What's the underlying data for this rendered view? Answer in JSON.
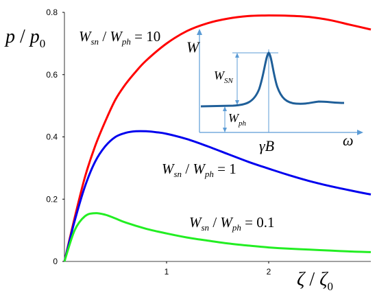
{
  "chart_data": {
    "type": "line",
    "title": "",
    "xlim": [
      0,
      3
    ],
    "ylim": [
      0,
      0.8
    ],
    "xticks": [
      "1",
      "2"
    ],
    "yticks": [
      "0",
      "0.2",
      "0.4",
      "0.6",
      "0.8"
    ],
    "xlabel": {
      "main": "ζ",
      "sep": " / ",
      "main2": "ζ",
      "sub2": "0"
    },
    "ylabel": {
      "main": "p",
      "sep": " / ",
      "main2": "p",
      "sub2": "0"
    },
    "series": [
      {
        "color": "#ff0000",
        "x": [
          0,
          0.1,
          0.2,
          0.3,
          0.4,
          0.5,
          0.6,
          0.7,
          0.8,
          1.0,
          1.2,
          1.4,
          1.6,
          1.8,
          2.0,
          2.2,
          2.4,
          2.6,
          2.8,
          3.0
        ],
        "y": [
          0,
          0.14,
          0.27,
          0.37,
          0.45,
          0.52,
          0.57,
          0.61,
          0.645,
          0.7,
          0.74,
          0.765,
          0.78,
          0.788,
          0.79,
          0.789,
          0.785,
          0.775,
          0.76,
          0.745
        ],
        "label": {
          "a": "W",
          "as": "sn",
          "b": "W",
          "bs": "ph",
          "eq": " = 10"
        }
      },
      {
        "color": "#0000ee",
        "x": [
          0,
          0.1,
          0.2,
          0.3,
          0.4,
          0.5,
          0.6,
          0.7,
          0.8,
          0.9,
          1.0,
          1.2,
          1.4,
          1.6,
          1.8,
          2.0,
          2.2,
          2.4,
          2.6,
          2.8,
          3.0
        ],
        "y": [
          0,
          0.13,
          0.24,
          0.32,
          0.37,
          0.4,
          0.413,
          0.418,
          0.418,
          0.415,
          0.41,
          0.393,
          0.37,
          0.345,
          0.32,
          0.298,
          0.277,
          0.258,
          0.242,
          0.228,
          0.215
        ],
        "label": {
          "a": "W",
          "as": "sn",
          "b": "W",
          "bs": "ph",
          "eq": " = 1"
        }
      },
      {
        "color": "#22ee22",
        "x": [
          0,
          0.1,
          0.2,
          0.3,
          0.4,
          0.5,
          0.6,
          0.8,
          1.0,
          1.2,
          1.4,
          1.6,
          1.8,
          2.0,
          2.2,
          2.4,
          2.6,
          2.8,
          3.0
        ],
        "y": [
          0,
          0.1,
          0.145,
          0.155,
          0.15,
          0.138,
          0.125,
          0.105,
          0.09,
          0.077,
          0.067,
          0.058,
          0.051,
          0.045,
          0.041,
          0.038,
          0.035,
          0.032,
          0.03
        ],
        "label": {
          "a": "W",
          "as": "sn",
          "b": "W",
          "bs": "ph",
          "eq": " = 0.1"
        }
      }
    ],
    "inset": {
      "color": "#1f5f99",
      "yaxis_label": "W",
      "xaxis_label": "ω",
      "peak_label": "γB",
      "sn_label": {
        "a": "W",
        "as": "SN"
      },
      "ph_label": {
        "a": "W",
        "as": "ph"
      }
    }
  }
}
